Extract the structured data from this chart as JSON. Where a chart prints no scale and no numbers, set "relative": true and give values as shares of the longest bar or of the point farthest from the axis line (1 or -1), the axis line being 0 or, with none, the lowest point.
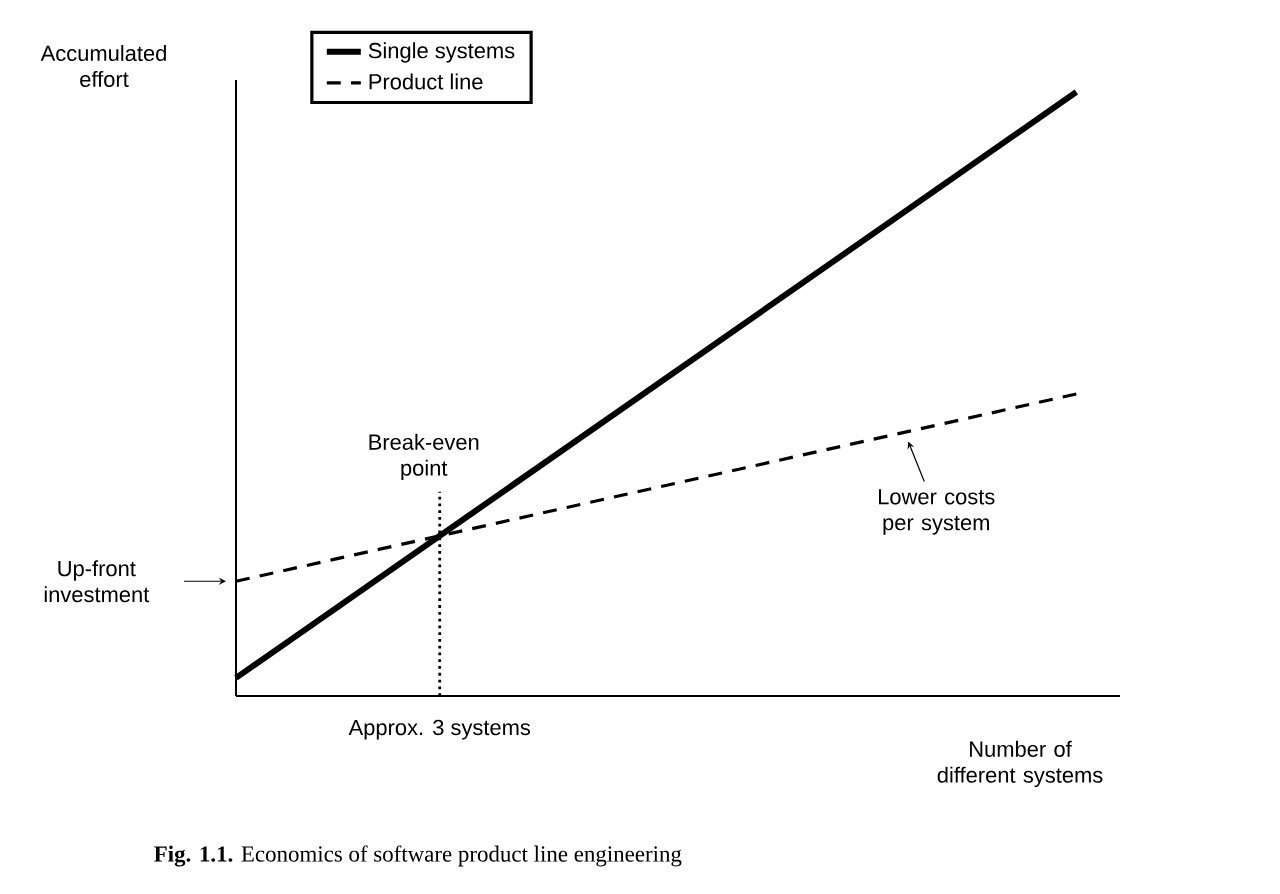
{
  "chart_data": {
    "type": "line",
    "relative": true,
    "xlabel": "Number of different systems",
    "ylabel": "Accumulated effort",
    "legend": "top left",
    "categories": [
      null,
      null
    ],
    "series": [
      {
        "name": "Single systems",
        "color": "#000000",
        "line_style": "solid",
        "values": [
          0.03,
          1
        ]
      },
      {
        "name": "Product line",
        "color": "#000000",
        "line_style": "dashed",
        "values": [
          0.19,
          0.5
        ]
      }
    ],
    "annotations": [
      "Break-even point",
      "Up-front investment",
      "Lower costs per system",
      "Approx. 3 systems",
      "**Fig. 1.1.** Economics of software product line engineering"
    ]
  }
}
